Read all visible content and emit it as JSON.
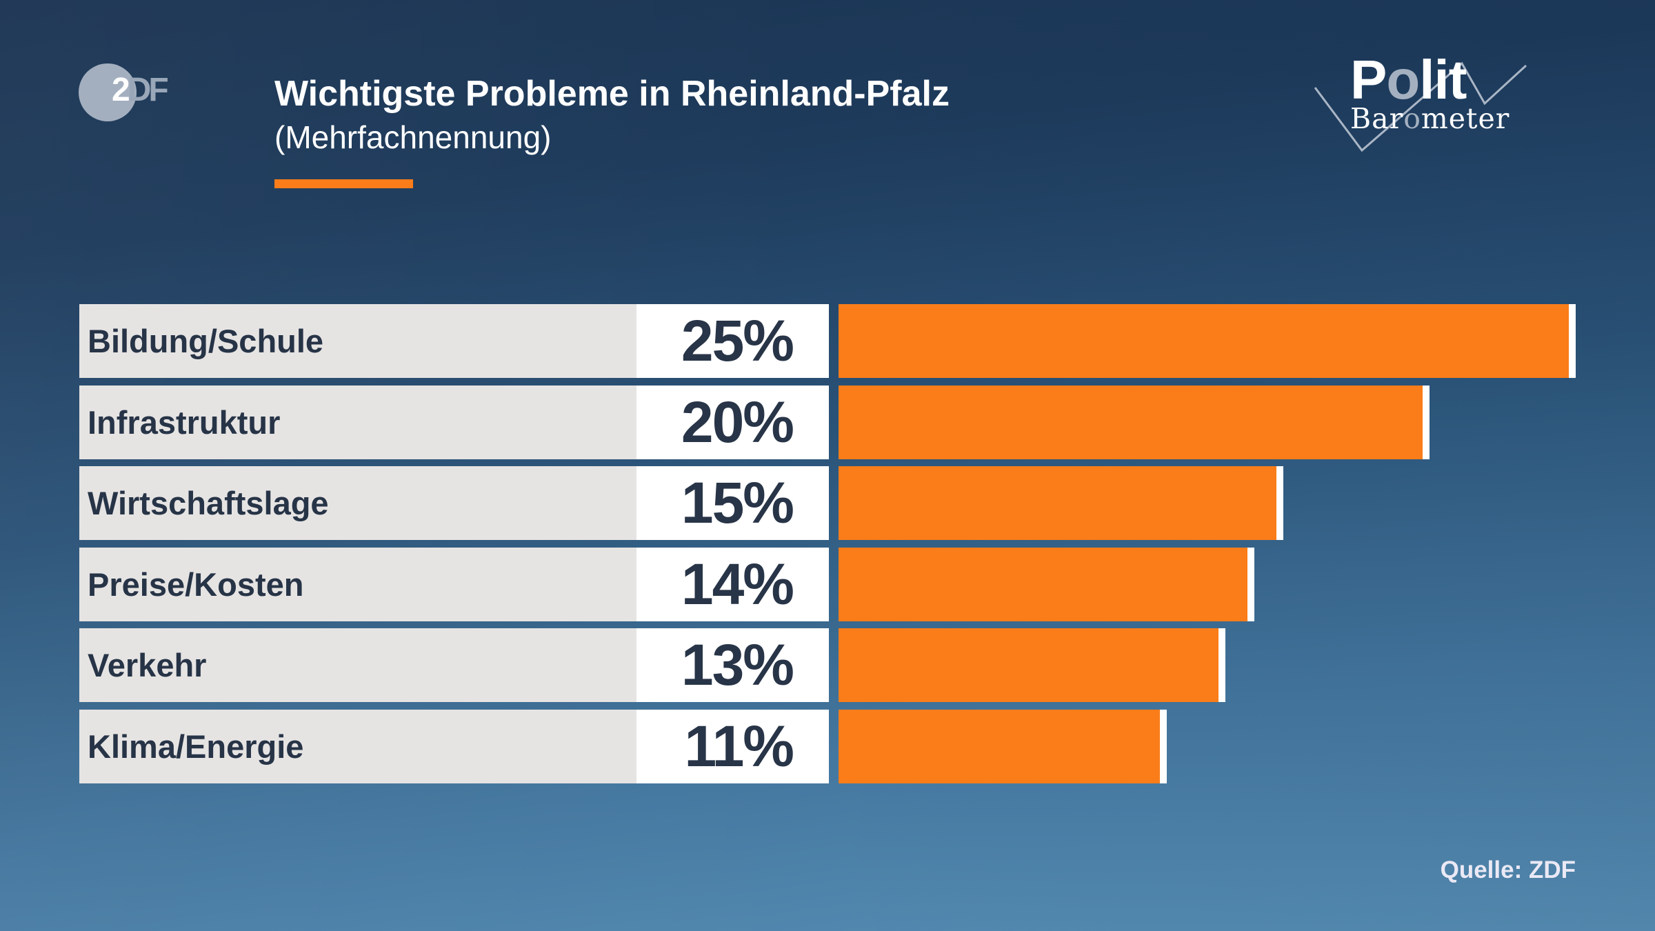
{
  "header": {
    "title": "Wichtigste Probleme in Rheinland-Pfalz",
    "subtitle": "(Mehrfachnennung)",
    "accent_color": "#fa7d19"
  },
  "logos": {
    "zdf": {
      "digit": "2",
      "letters": "DF",
      "name": "ZDF"
    },
    "politbarometer": {
      "line1_a": "P",
      "line1_dim": "o",
      "line1_b": "lit",
      "line2_a": "Bar",
      "line2_dim": "o",
      "line2_b": "meter"
    }
  },
  "colors": {
    "bar": "#fa7d19",
    "bar_cap": "#ffffff",
    "label_bg": "#e6e4e3",
    "value_bg": "#ffffff",
    "text_dark": "#273447",
    "bg_top": "#1b3452",
    "bg_bottom": "#5a92b8"
  },
  "rows": [
    {
      "label": "Bildung/Schule",
      "value_text": "25%",
      "value": 25
    },
    {
      "label": "Infrastruktur",
      "value_text": "20%",
      "value": 20
    },
    {
      "label": "Wirtschaftslage",
      "value_text": "15%",
      "value": 15
    },
    {
      "label": "Preise/Kosten",
      "value_text": "14%",
      "value": 14
    },
    {
      "label": "Verkehr",
      "value_text": "13%",
      "value": 13
    },
    {
      "label": "Klima/Energie",
      "value_text": "11%",
      "value": 11
    }
  ],
  "footer": {
    "source": "Quelle: ZDF"
  },
  "chart_data": {
    "type": "bar",
    "orientation": "horizontal",
    "title": "Wichtigste Probleme in Rheinland-Pfalz",
    "subtitle": "(Mehrfachnennung)",
    "categories": [
      "Bildung/Schule",
      "Infrastruktur",
      "Wirtschaftslage",
      "Preise/Kosten",
      "Verkehr",
      "Klima/Energie"
    ],
    "values": [
      25,
      20,
      15,
      14,
      13,
      11
    ],
    "value_labels": [
      "25%",
      "20%",
      "15%",
      "14%",
      "13%",
      "11%"
    ],
    "unit": "%",
    "xlabel": "",
    "ylabel": "",
    "grid": false,
    "legend": null,
    "bar_color": "#fa7d19",
    "source": "Quelle: ZDF"
  }
}
